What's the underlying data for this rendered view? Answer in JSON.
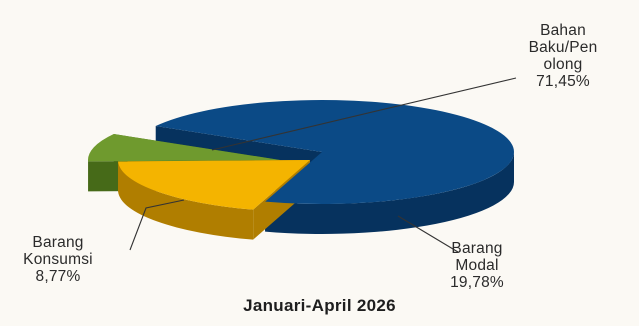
{
  "chart_data": {
    "type": "pie",
    "title": "Januari-April 2026",
    "slices": [
      {
        "label_lines": [
          "Bahan",
          "Baku/Pen",
          "olong"
        ],
        "value_label": "71,45%",
        "value": 71.45,
        "color": "#0b4a86",
        "color_side": "#06325e"
      },
      {
        "label_lines": [
          "Barang",
          "Modal"
        ],
        "value_label": "19,78%",
        "value": 19.78,
        "color": "#f4b400",
        "color_side": "#b07e00"
      },
      {
        "label_lines": [
          "Barang",
          "Konsumsi"
        ],
        "value_label": "8,77%",
        "value": 8.77,
        "color": "#6f9a2e",
        "color_side": "#466a18"
      }
    ],
    "legend": "none",
    "style": "3d-exploded"
  }
}
